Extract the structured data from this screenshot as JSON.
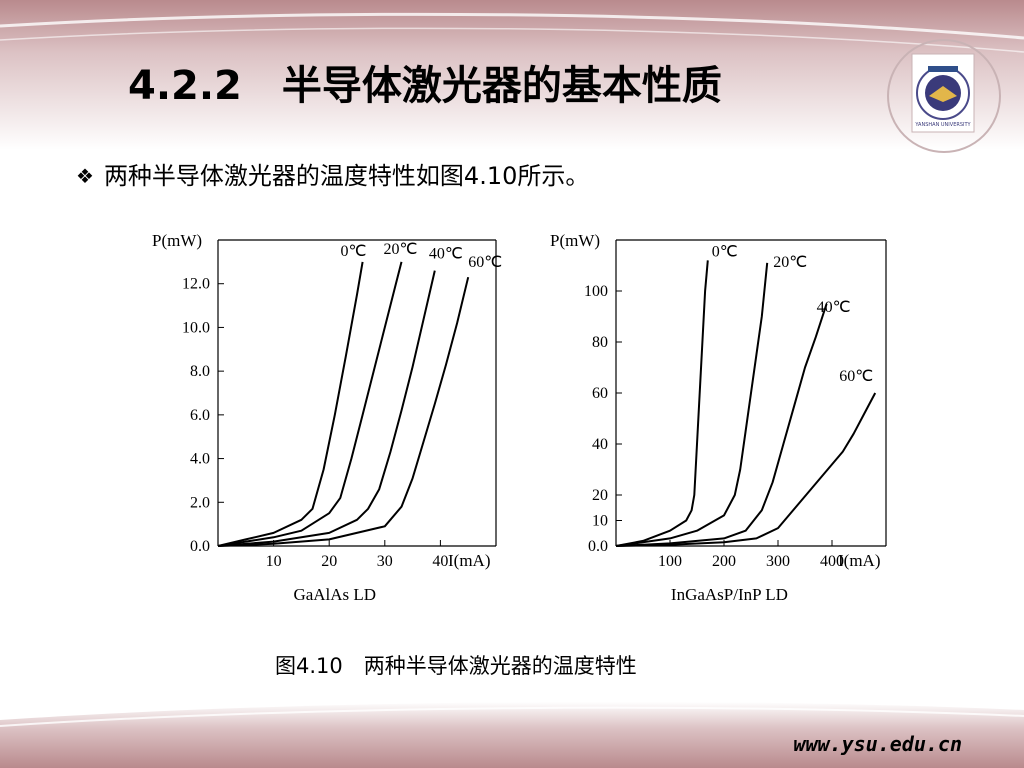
{
  "slide": {
    "title": "4.2.2　半导体激光器的基本性质",
    "bullet": "两种半导体激光器的温度特性如图4.10所示。",
    "caption": "图4.10　两种半导体激光器的温度特性",
    "footer_url": "www.ysu.edu.cn"
  },
  "logo": {
    "text": "YANSHAN UNIVERSITY"
  },
  "colors": {
    "band": "#b98a8d",
    "band_light": "#f2e4e5",
    "curve": "#000000"
  },
  "chart_data": [
    {
      "type": "line",
      "title": "GaAlAs LD",
      "xlabel": "I(mA)",
      "ylabel": "P(mW)",
      "xlim": [
        0,
        50
      ],
      "ylim": [
        0,
        14
      ],
      "xticks": [
        10,
        20,
        30,
        40
      ],
      "xtick_labels": [
        "10",
        "20",
        "30",
        "40"
      ],
      "yticks": [
        0,
        2,
        4,
        6,
        8,
        10,
        12
      ],
      "ytick_labels": [
        "0.0",
        "2.0",
        "4.0",
        "6.0",
        "8.0",
        "10.0",
        "12.0"
      ],
      "series": [
        {
          "name": "0℃",
          "x": [
            0,
            5,
            10,
            15,
            17,
            19,
            21,
            23,
            25,
            26
          ],
          "y": [
            0,
            0.3,
            0.6,
            1.2,
            1.7,
            3.5,
            6.0,
            8.7,
            11.5,
            13.0
          ]
        },
        {
          "name": "20℃",
          "x": [
            0,
            5,
            10,
            15,
            20,
            22,
            24,
            26,
            28,
            30,
            32,
            33
          ],
          "y": [
            0,
            0.2,
            0.4,
            0.7,
            1.5,
            2.2,
            4.0,
            6.0,
            8.0,
            10.0,
            12.0,
            13.0
          ]
        },
        {
          "name": "40℃",
          "x": [
            0,
            10,
            20,
            25,
            27,
            29,
            31,
            33,
            35,
            37,
            39
          ],
          "y": [
            0,
            0.2,
            0.6,
            1.2,
            1.7,
            2.6,
            4.3,
            6.2,
            8.2,
            10.4,
            12.6
          ]
        },
        {
          "name": "60℃",
          "x": [
            0,
            10,
            20,
            30,
            33,
            35,
            37,
            39,
            41,
            43,
            45
          ],
          "y": [
            0,
            0.1,
            0.3,
            0.9,
            1.8,
            3.1,
            4.8,
            6.5,
            8.3,
            10.2,
            12.3
          ]
        }
      ]
    },
    {
      "type": "line",
      "title": "InGaAsP/InP  LD",
      "xlabel": "I(mA)",
      "ylabel": "P(mW)",
      "xlim": [
        0,
        500
      ],
      "ylim": [
        0,
        120
      ],
      "xticks": [
        100,
        200,
        300,
        400
      ],
      "xtick_labels": [
        "100",
        "200",
        "300",
        "400"
      ],
      "yticks": [
        0,
        10,
        20,
        40,
        60,
        80,
        100
      ],
      "ytick_labels": [
        "0.0",
        "10",
        "20",
        "40",
        "60",
        "80",
        "100"
      ],
      "series": [
        {
          "name": "0℃",
          "x": [
            0,
            50,
            100,
            130,
            140,
            145,
            150,
            155,
            160,
            165,
            170
          ],
          "y": [
            0,
            2,
            6,
            10,
            14,
            20,
            40,
            60,
            80,
            100,
            112
          ]
        },
        {
          "name": "20℃",
          "x": [
            0,
            100,
            150,
            200,
            220,
            230,
            240,
            250,
            260,
            270,
            280
          ],
          "y": [
            0,
            3,
            6,
            12,
            20,
            30,
            45,
            60,
            75,
            90,
            111
          ]
        },
        {
          "name": "40℃",
          "x": [
            0,
            100,
            200,
            240,
            270,
            290,
            310,
            330,
            350,
            370,
            390
          ],
          "y": [
            0,
            1,
            3,
            6,
            14,
            25,
            40,
            55,
            70,
            82,
            95
          ]
        },
        {
          "name": "60℃",
          "x": [
            0,
            100,
            200,
            260,
            300,
            320,
            340,
            360,
            380,
            400,
            420,
            440,
            460,
            480
          ],
          "y": [
            0,
            0.5,
            1.5,
            3,
            7,
            12,
            17,
            22,
            27,
            32,
            37,
            44,
            52,
            60
          ]
        }
      ]
    }
  ]
}
